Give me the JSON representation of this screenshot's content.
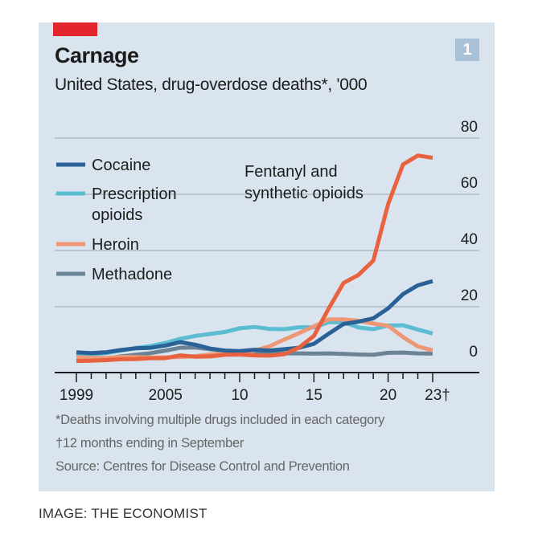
{
  "header": {
    "title": "Carnage",
    "subtitle": "United States, drug-overdose deaths*, '000",
    "badge": "1"
  },
  "footnotes": {
    "note1": "*Deaths involving multiple drugs included in each category",
    "note2": "†12 months ending in September",
    "source": "Source: Centres for Disease Control and Prevention"
  },
  "credit": "IMAGE: THE ECONOMIST",
  "colors": {
    "background": "#d9e4ee",
    "accent_red": "#e3262d",
    "fentanyl": "#e8623f",
    "cocaine": "#2a6197",
    "prescription": "#5bbcd2",
    "heroin": "#ec9776",
    "methadone": "#6b8495"
  },
  "chart_data": {
    "type": "line",
    "title": "Carnage",
    "subtitle": "United States, drug-overdose deaths*, '000",
    "xlabel": "",
    "ylabel": "'000",
    "ylim": [
      0,
      80
    ],
    "yticks": [
      0,
      20,
      40,
      60,
      80
    ],
    "ytick_labels": [
      "0",
      "20",
      "40",
      "60",
      "80"
    ],
    "xlim": [
      1999,
      2023
    ],
    "xtick_labels": [
      {
        "year": 1999,
        "label": "1999"
      },
      {
        "year": 2005,
        "label": "2005"
      },
      {
        "year": 2010,
        "label": "10"
      },
      {
        "year": 2015,
        "label": "15"
      },
      {
        "year": 2020,
        "label": "20"
      },
      {
        "year": 2023,
        "label": "23†"
      }
    ],
    "grid": true,
    "legend_position": "left",
    "x": [
      1999,
      2000,
      2001,
      2002,
      2003,
      2004,
      2005,
      2006,
      2007,
      2008,
      2009,
      2010,
      2011,
      2012,
      2013,
      2014,
      2015,
      2016,
      2017,
      2018,
      2019,
      2020,
      2021,
      2022,
      2023
    ],
    "series": [
      {
        "name": "Cocaine",
        "key": "cocaine",
        "values": [
          3.8,
          3.5,
          3.8,
          4.6,
          5.2,
          5.4,
          6.2,
          7.4,
          6.5,
          5.1,
          4.4,
          4.2,
          4.7,
          4.4,
          4.9,
          5.4,
          6.8,
          10.4,
          13.9,
          14.7,
          15.9,
          19.4,
          24.5,
          27.6,
          29.1
        ]
      },
      {
        "name": "Prescription opioids",
        "key": "prescription",
        "values": [
          2.7,
          3.0,
          3.5,
          4.4,
          5.3,
          6.0,
          7.1,
          8.6,
          9.6,
          10.3,
          11.0,
          12.3,
          12.8,
          12.1,
          12.0,
          12.7,
          12.7,
          14.5,
          14.5,
          12.6,
          12.0,
          13.3,
          13.4,
          11.9,
          10.5
        ]
      },
      {
        "name": "Heroin",
        "key": "heroin",
        "values": [
          2.0,
          1.8,
          1.8,
          2.1,
          2.1,
          1.9,
          2.0,
          2.1,
          2.4,
          3.0,
          3.3,
          3.0,
          4.4,
          5.9,
          8.3,
          10.6,
          13.0,
          15.5,
          15.5,
          15.0,
          14.0,
          13.2,
          9.2,
          5.9,
          4.5
        ]
      },
      {
        "name": "Methadone",
        "key": "methadone",
        "values": [
          0.8,
          1.0,
          1.5,
          2.3,
          2.9,
          3.5,
          4.4,
          5.4,
          5.5,
          4.9,
          4.3,
          3.9,
          3.9,
          3.4,
          3.4,
          3.4,
          3.3,
          3.4,
          3.2,
          3.0,
          2.9,
          3.6,
          3.7,
          3.4,
          3.3
        ]
      },
      {
        "name": "Fentanyl and synthetic opioids",
        "key": "fentanyl",
        "values": [
          0.7,
          0.8,
          1.0,
          1.3,
          1.4,
          1.7,
          1.7,
          2.7,
          2.2,
          2.3,
          2.9,
          3.0,
          2.7,
          2.6,
          3.1,
          5.5,
          9.6,
          19.4,
          28.5,
          31.3,
          36.4,
          56.5,
          70.6,
          73.8,
          73.0
        ]
      }
    ],
    "legend": [
      "Cocaine",
      "Prescription opioids",
      "Heroin",
      "Methadone"
    ],
    "legend_lines": [
      [
        "Cocaine"
      ],
      [
        "Prescription",
        "opioids"
      ],
      [
        "Heroin"
      ],
      [
        "Methadone"
      ]
    ],
    "annotations": [
      {
        "text_lines": [
          "Fentanyl and",
          "synthetic opioids"
        ],
        "series": "Fentanyl and synthetic opioids"
      }
    ]
  }
}
